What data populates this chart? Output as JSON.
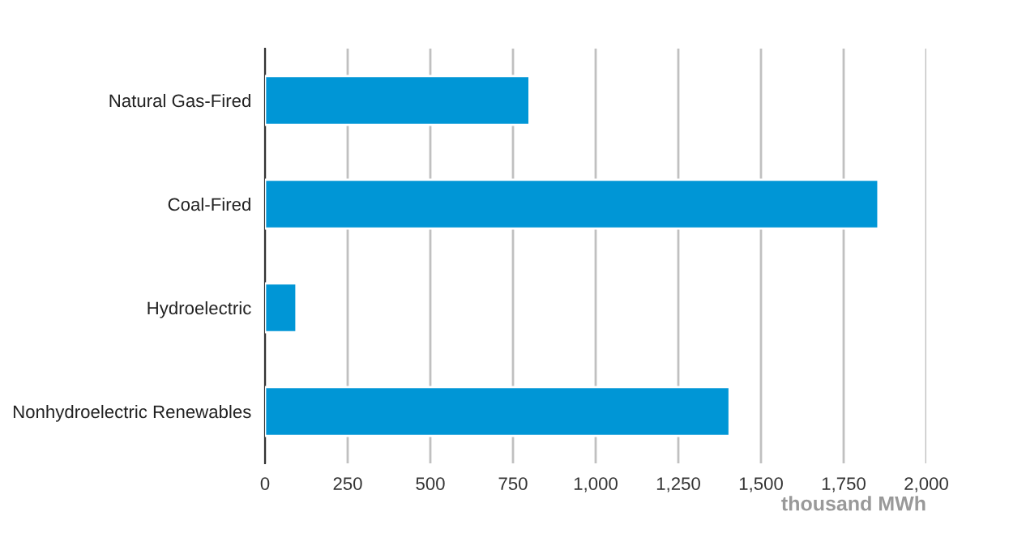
{
  "chart_data": {
    "type": "bar",
    "orientation": "horizontal",
    "categories": [
      "Natural Gas-Fired",
      "Coal-Fired",
      "Hydroelectric",
      "Nonhydroelectric Renewables"
    ],
    "values": [
      800,
      1855,
      95,
      1405
    ],
    "color": "#0096d6",
    "xlim": [
      0,
      2000
    ],
    "xticks": [
      0,
      250,
      500,
      750,
      {
        "value": 1000,
        "label": "1,000"
      },
      {
        "value": 1250,
        "label": "1,250"
      },
      {
        "value": 1500,
        "label": "1,500"
      },
      {
        "value": 1750,
        "label": "1,750"
      },
      {
        "value": 2000,
        "label": "2,000"
      }
    ],
    "xlabel": "thousand MWh",
    "grid": "x"
  }
}
